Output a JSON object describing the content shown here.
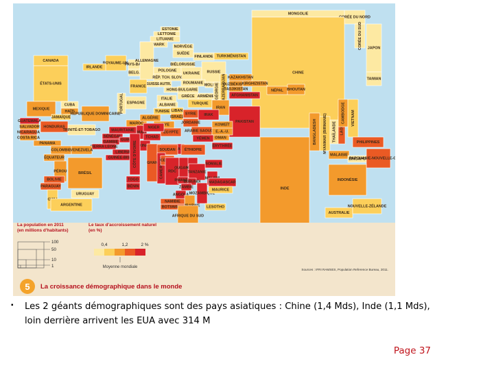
{
  "colors": {
    "low": "#fde9a2",
    "mid_low": "#fccf5a",
    "mid_high": "#f39a2c",
    "high": "#ea5a24",
    "very_high": "#d8232a",
    "ocean": "#bfe0f0",
    "panel": "#f3e5cc",
    "accent_red": "#b5101e",
    "caption_badge": "#f4a32a"
  },
  "countries": [
    {
      "name": "MONGOLIE",
      "rate": "low"
    },
    {
      "name": "CORÉE DU NORD",
      "rate": "low"
    },
    {
      "name": "CORÉE DU SUD",
      "rate": "low"
    },
    {
      "name": "JAPON",
      "rate": "low"
    },
    {
      "name": "TAIWAN",
      "rate": "low"
    },
    {
      "name": "CHINE",
      "rate": "mid_low"
    },
    {
      "name": "ESTONIE",
      "rate": "low"
    },
    {
      "name": "LETTONIE",
      "rate": "low"
    },
    {
      "name": "LITUANIE",
      "rate": "low"
    },
    {
      "name": "DANEMARK",
      "rate": "low"
    },
    {
      "name": "NORVÈGE",
      "rate": "low"
    },
    {
      "name": "SUÈDE",
      "rate": "low"
    },
    {
      "name": "FINLANDE",
      "rate": "low"
    },
    {
      "name": "TURKMÉNISTAN",
      "rate": "mid_low"
    },
    {
      "name": "CANADA",
      "rate": "mid_low"
    },
    {
      "name": "ROYAUME-UNI",
      "rate": "mid_low"
    },
    {
      "name": "IRLANDE",
      "rate": "mid_low"
    },
    {
      "name": "PAYS-BAS",
      "rate": "low"
    },
    {
      "name": "BELG.",
      "rate": "low"
    },
    {
      "name": "ALLEMAGNE",
      "rate": "low"
    },
    {
      "name": "BIÉLORUSSIE",
      "rate": "low"
    },
    {
      "name": "POLOGNE",
      "rate": "low"
    },
    {
      "name": "UKRAINE",
      "rate": "low"
    },
    {
      "name": "RUSSIE",
      "rate": "low"
    },
    {
      "name": "ÉTATS-UNIS",
      "rate": "mid_low"
    },
    {
      "name": "RÉP. TCH. SLOV.",
      "rate": "low"
    },
    {
      "name": "SUISSE",
      "rate": "low"
    },
    {
      "name": "AUTR.",
      "rate": "low"
    },
    {
      "name": "HONG.",
      "rate": "low"
    },
    {
      "name": "ROUMANIE",
      "rate": "low"
    },
    {
      "name": "MOLD.",
      "rate": "low"
    },
    {
      "name": "BULGARIE",
      "rate": "low"
    },
    {
      "name": "GRÈCE",
      "rate": "low"
    },
    {
      "name": "ARMÉNIE",
      "rate": "low"
    },
    {
      "name": "GÉORGIE",
      "rate": "low"
    },
    {
      "name": "AZERBAÏDJAN",
      "rate": "mid_low"
    },
    {
      "name": "KAZAKHSTAN",
      "rate": "mid_high"
    },
    {
      "name": "OUZBÉKISTAN",
      "rate": "mid_high"
    },
    {
      "name": "KIRGHIZISTAN",
      "rate": "mid_high"
    },
    {
      "name": "TADJIKISTAN",
      "rate": "mid_high"
    },
    {
      "name": "AFGHANISTAN",
      "rate": "very_high"
    },
    {
      "name": "NÉPAL",
      "rate": "mid_high"
    },
    {
      "name": "BHOUTAN",
      "rate": "mid_high"
    },
    {
      "name": "FRANCE",
      "rate": "mid_low"
    },
    {
      "name": "PORTUGAL",
      "rate": "low"
    },
    {
      "name": "ESPAGNE",
      "rate": "low"
    },
    {
      "name": "ITALIE",
      "rate": "low"
    },
    {
      "name": "ALBANIE",
      "rate": "low"
    },
    {
      "name": "TURQUIE",
      "rate": "mid_low"
    },
    {
      "name": "IRAN",
      "rate": "mid_high"
    },
    {
      "name": "MEXIQUE",
      "rate": "mid_high"
    },
    {
      "name": "CUBA",
      "rate": "low"
    },
    {
      "name": "HAÏTI",
      "rate": "mid_high"
    },
    {
      "name": "JAMAÏQUE",
      "rate": "mid_low"
    },
    {
      "name": "RÉPUBLIQUE DOMINICAINE",
      "rate": "mid_high"
    },
    {
      "name": "TUNISIE",
      "rate": "mid_low"
    },
    {
      "name": "LIBAN",
      "rate": "mid_low"
    },
    {
      "name": "ISRAËL",
      "rate": "mid_high"
    },
    {
      "name": "SYRIE",
      "rate": "high"
    },
    {
      "name": "IRAK",
      "rate": "very_high"
    },
    {
      "name": "PAKISTAN",
      "rate": "very_high"
    },
    {
      "name": "GUATEMALA",
      "rate": "very_high"
    },
    {
      "name": "SALVADOR",
      "rate": "mid_high"
    },
    {
      "name": "HONDURAS",
      "rate": "high"
    },
    {
      "name": "NICARAGUA",
      "rate": "high"
    },
    {
      "name": "COSTA RICA",
      "rate": "mid_high"
    },
    {
      "name": "PANAMA",
      "rate": "mid_high"
    },
    {
      "name": "TRINITÉ-ET-TOBAGO",
      "rate": "low"
    },
    {
      "name": "MAROC",
      "rate": "mid_high"
    },
    {
      "name": "ALGÉRIE",
      "rate": "mid_high"
    },
    {
      "name": "LIBYE",
      "rate": "mid_high"
    },
    {
      "name": "ÉGYPTE",
      "rate": "high"
    },
    {
      "name": "JORDANIE",
      "rate": "high"
    },
    {
      "name": "ARABIE SAOUDITE",
      "rate": "high"
    },
    {
      "name": "KOWEÏT",
      "rate": "mid_high"
    },
    {
      "name": "E.-A.-U.",
      "rate": "mid_high"
    },
    {
      "name": "OMAN",
      "rate": "mid_high"
    },
    {
      "name": "YÉMEN",
      "rate": "very_high"
    },
    {
      "name": "BANGLADESH",
      "rate": "mid_high"
    },
    {
      "name": "MYANMAR (BIRMANIE)",
      "rate": "mid_low"
    },
    {
      "name": "THAÏLANDE",
      "rate": "low"
    },
    {
      "name": "LAOS",
      "rate": "high"
    },
    {
      "name": "CAMBODGE",
      "rate": "mid_high"
    },
    {
      "name": "VIETNAM",
      "rate": "mid_low"
    },
    {
      "name": "MAURITANIE",
      "rate": "very_high"
    },
    {
      "name": "MALI",
      "rate": "very_high"
    },
    {
      "name": "NIGER",
      "rate": "very_high"
    },
    {
      "name": "TCHAD",
      "rate": "very_high"
    },
    {
      "name": "SÉNÉGAL",
      "rate": "very_high"
    },
    {
      "name": "GAMBIE",
      "rate": "very_high"
    },
    {
      "name": "GUINÉE",
      "rate": "very_high"
    },
    {
      "name": "SIERRA LEONE",
      "rate": "very_high"
    },
    {
      "name": "LIBERIA",
      "rate": "very_high"
    },
    {
      "name": "GUINÉE-BISSAU",
      "rate": "very_high"
    },
    {
      "name": "BURKINA FASO",
      "rate": "very_high"
    },
    {
      "name": "CÔTE D'IVOIRE",
      "rate": "very_high"
    },
    {
      "name": "GHANA",
      "rate": "high"
    },
    {
      "name": "NIGERIA",
      "rate": "very_high"
    },
    {
      "name": "SOUDAN",
      "rate": "high"
    },
    {
      "name": "ÉRYTHRÉE",
      "rate": "very_high"
    },
    {
      "name": "ÉTHIOPIE",
      "rate": "high"
    },
    {
      "name": "SOMALIE",
      "rate": "very_high"
    },
    {
      "name": "INDE",
      "rate": "mid_high"
    },
    {
      "name": "COLOMBIE",
      "rate": "mid_high"
    },
    {
      "name": "VENEZUELA",
      "rate": "mid_high"
    },
    {
      "name": "ÉQUATEUR",
      "rate": "mid_high"
    },
    {
      "name": "PÉROU",
      "rate": "mid_high"
    },
    {
      "name": "BRÉSIL",
      "rate": "mid_high"
    },
    {
      "name": "BOLIVIE",
      "rate": "high"
    },
    {
      "name": "PARAGUAY",
      "rate": "high"
    },
    {
      "name": "CHILI",
      "rate": "mid_low"
    },
    {
      "name": "URUGUAY",
      "rate": "low"
    },
    {
      "name": "ARGENTINE",
      "rate": "mid_low"
    },
    {
      "name": "TOGO",
      "rate": "very_high"
    },
    {
      "name": "BÉNIN",
      "rate": "very_high"
    },
    {
      "name": "CAMEROUN",
      "rate": "very_high"
    },
    {
      "name": "CENTR.",
      "rate": "high"
    },
    {
      "name": "RDC",
      "rate": "very_high"
    },
    {
      "name": "OUGANDA",
      "rate": "very_high"
    },
    {
      "name": "KENYA",
      "rate": "very_high"
    },
    {
      "name": "TANZANIE",
      "rate": "very_high"
    },
    {
      "name": "RWANDA",
      "rate": "very_high"
    },
    {
      "name": "BURUNDI",
      "rate": "very_high"
    },
    {
      "name": "ANGOLA",
      "rate": "very_high"
    },
    {
      "name": "ZAMBIE",
      "rate": "very_high"
    },
    {
      "name": "ZIMBABWE",
      "rate": "mid_high"
    },
    {
      "name": "MOZAMBIQUE",
      "rate": "very_high"
    },
    {
      "name": "MALAWI",
      "rate": "very_high"
    },
    {
      "name": "MADAGASCAR",
      "rate": "very_high"
    },
    {
      "name": "MAURICE",
      "rate": "mid_low"
    },
    {
      "name": "NAMIBIE",
      "rate": "high"
    },
    {
      "name": "BOTSWANA",
      "rate": "high"
    },
    {
      "name": "AFRIQUE DU SUD",
      "rate": "mid_high"
    },
    {
      "name": "LESOTHO",
      "rate": "mid_low"
    },
    {
      "name": "MALAISIE",
      "rate": "mid_high"
    },
    {
      "name": "SINGAPOUR",
      "rate": "low"
    },
    {
      "name": "PHILIPPINES",
      "rate": "high"
    },
    {
      "name": "PAPOUASIE-NOUVELLE-GUINÉE",
      "rate": "high"
    },
    {
      "name": "INDONÉSIE",
      "rate": "mid_high"
    },
    {
      "name": "AUSTRALIE",
      "rate": "mid_low"
    },
    {
      "name": "NOUVELLE-ZÉLANDE",
      "rate": "mid_low"
    },
    {
      "name": "SRI LANKA",
      "rate": "mid_low"
    }
  ],
  "legend": {
    "population_title": "La population en 2011",
    "population_subtitle": "(en millions d'habitants)",
    "population_scale": [
      "100",
      "50",
      "10",
      "1"
    ],
    "growth_title": "Le taux d'accroissement naturel",
    "growth_subtitle": "(en %)",
    "growth_ticks": [
      "0,4",
      "1,2",
      "2 %"
    ],
    "world_average_label": "Moyenne mondiale"
  },
  "source": "Sources : IFRI RAMSES, Population Reference Bureau, 2011.",
  "caption": {
    "number": "5",
    "text": "La croissance démographique dans le monde"
  },
  "bullet": {
    "text": "Les 2 géants démographiques sont des pays asiatiques : Chine (1,4 Mds), Inde (1,1 Mds), loin derrière arrivent les EUA avec 314 M"
  },
  "page_number": "Page 37"
}
